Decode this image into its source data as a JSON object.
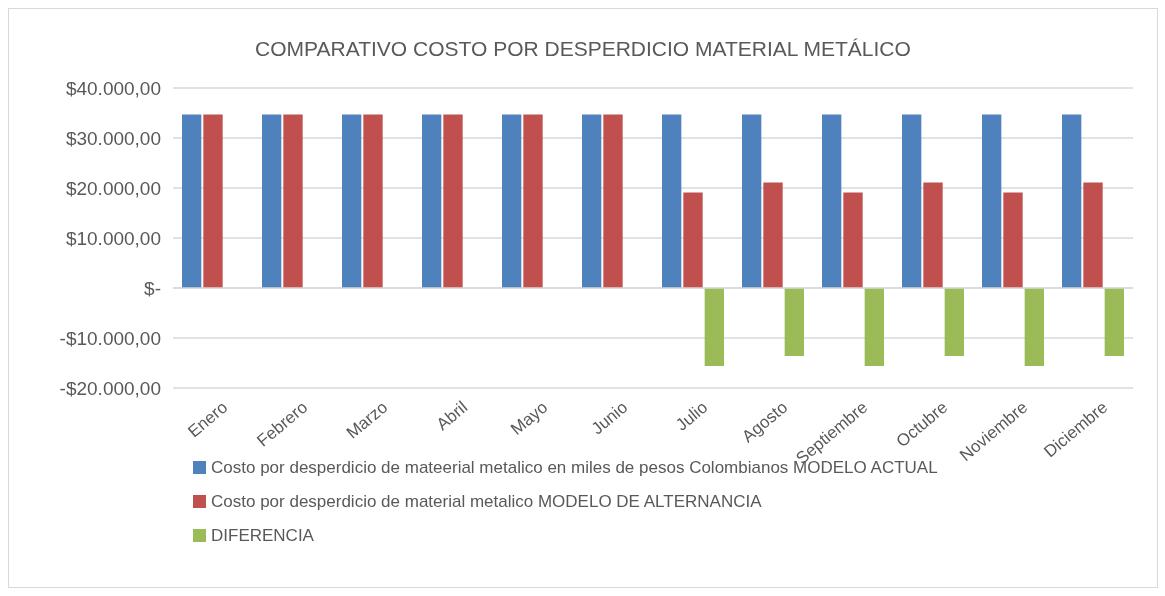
{
  "chart_data": {
    "type": "bar",
    "title": "COMPARATIVO COSTO POR DESPERDICIO MATERIAL METÁLICO",
    "categories": [
      "Enero",
      "Febrero",
      "Marzo",
      "Abril",
      "Mayo",
      "Junio",
      "Julio",
      "Agosto",
      "Septiembre",
      "Octubre",
      "Noviembre",
      "Diciembre"
    ],
    "series": [
      {
        "name": "Costo por desperdicio de mateerial metalico en miles de pesos Colombianos MODELO ACTUAL",
        "color": "#4f81bd",
        "values": [
          34700,
          34700,
          34700,
          34700,
          34700,
          34700,
          34700,
          34700,
          34700,
          34700,
          34700,
          34700
        ]
      },
      {
        "name": "Costo por desperdicio de material metalico MODELO DE ALTERNANCIA",
        "color": "#c0504d",
        "values": [
          34700,
          34700,
          34700,
          34700,
          34700,
          34700,
          19100,
          21100,
          19100,
          21100,
          19100,
          21100
        ]
      },
      {
        "name": "DIFERENCIA",
        "color": "#9bbb59",
        "values": [
          0,
          0,
          0,
          0,
          0,
          0,
          -15600,
          -13600,
          -15600,
          -13600,
          -15600,
          -13600
        ]
      }
    ],
    "ylim": [
      -20000,
      40000
    ],
    "yticks": [
      {
        "value": -20000,
        "label": "-$20.000,00"
      },
      {
        "value": -10000,
        "label": "-$10.000,00"
      },
      {
        "value": 0,
        "label": "$-"
      },
      {
        "value": 10000,
        "label": "$10.000,00"
      },
      {
        "value": 20000,
        "label": "$20.000,00"
      },
      {
        "value": 30000,
        "label": "$30.000,00"
      },
      {
        "value": 40000,
        "label": "$40.000,00"
      }
    ],
    "grid": "y",
    "legend": "bottom"
  }
}
